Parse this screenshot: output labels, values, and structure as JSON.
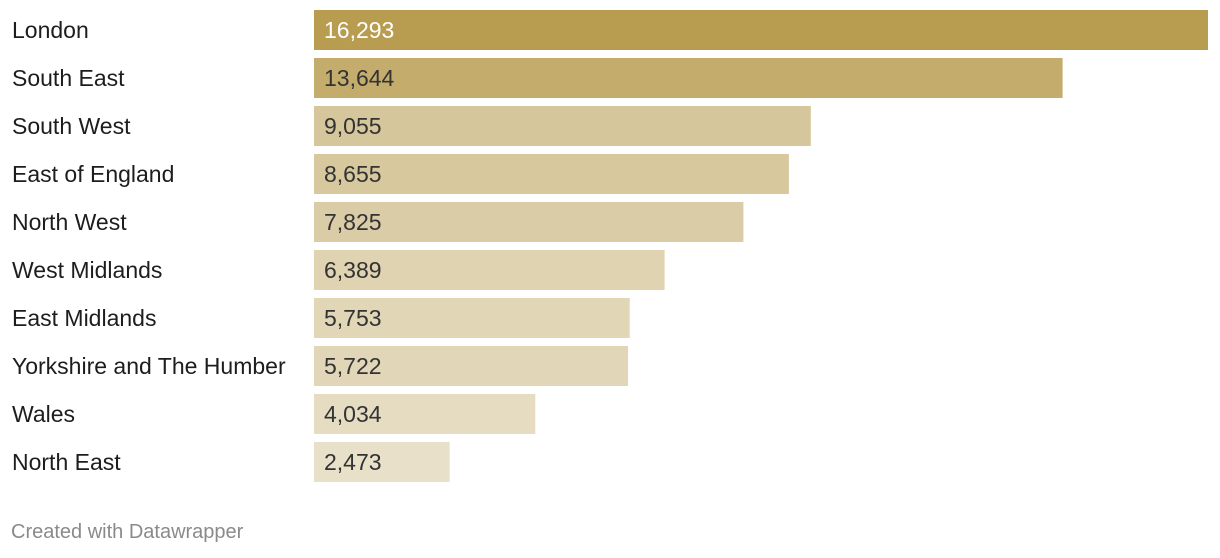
{
  "chart_data": {
    "type": "bar",
    "orientation": "horizontal",
    "categories": [
      "London",
      "South East",
      "South West",
      "East of England",
      "North West",
      "West Midlands",
      "East Midlands",
      "Yorkshire and The Humber",
      "Wales",
      "North East"
    ],
    "values": [
      16293,
      13644,
      9055,
      8655,
      7825,
      6389,
      5753,
      5722,
      4034,
      2473
    ],
    "value_labels": [
      "16,293",
      "13,644",
      "9,055",
      "8,655",
      "7,825",
      "6,389",
      "5,753",
      "5,722",
      "4,034",
      "2,473"
    ],
    "xlim": [
      0,
      16293
    ],
    "grid": false,
    "legend": "none",
    "colors": {
      "bar_max": "#b89c50",
      "bar_min": "#e8e0c9",
      "value_text_dark_bar": "#ffffff",
      "value_text_light_bar": "#333333"
    }
  },
  "footer": {
    "credit": "Created with Datawrapper"
  }
}
